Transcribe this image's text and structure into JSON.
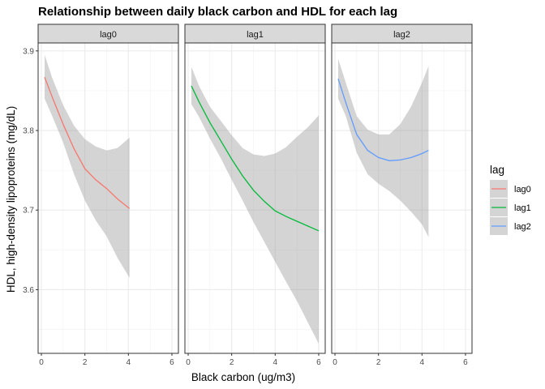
{
  "chart_data": {
    "type": "line",
    "title": "Relationship between daily black carbon and HDL for each lag",
    "xlabel": "Black carbon (ug/m3)",
    "ylabel": "HDL, high-density lipoproteins (mg/dL)",
    "xlim": [
      -0.15,
      6.3
    ],
    "ylim": [
      3.52,
      3.91
    ],
    "x_ticks": [
      0,
      2,
      4,
      6
    ],
    "y_ticks": [
      3.6,
      3.7,
      3.8,
      3.9
    ],
    "y_tick_labels": [
      "3.6",
      "3.7",
      "3.8",
      "3.9"
    ],
    "grid": true,
    "legend": {
      "title": "lag",
      "position": "right"
    },
    "panels": [
      {
        "name": "lag0",
        "color": "#F8766D",
        "x": [
          0.15,
          0.5,
          1.0,
          1.5,
          2.0,
          2.5,
          3.0,
          3.5,
          4.05
        ],
        "y": [
          3.867,
          3.842,
          3.808,
          3.777,
          3.752,
          3.738,
          3.727,
          3.714,
          3.702
        ],
        "lower": [
          3.84,
          3.818,
          3.785,
          3.745,
          3.712,
          3.687,
          3.667,
          3.64,
          3.615
        ],
        "upper": [
          3.895,
          3.866,
          3.832,
          3.806,
          3.789,
          3.78,
          3.775,
          3.778,
          3.791
        ]
      },
      {
        "name": "lag1",
        "color": "#00BA38",
        "x": [
          0.15,
          0.5,
          1.0,
          1.5,
          2.0,
          2.5,
          3.0,
          3.5,
          4.0,
          4.5,
          5.0,
          5.5,
          6.0
        ],
        "y": [
          3.856,
          3.836,
          3.81,
          3.787,
          3.764,
          3.743,
          3.725,
          3.711,
          3.699,
          3.692,
          3.686,
          3.68,
          3.674
        ],
        "lower": [
          3.833,
          3.817,
          3.79,
          3.765,
          3.738,
          3.712,
          3.685,
          3.66,
          3.635,
          3.61,
          3.586,
          3.559,
          3.532
        ],
        "upper": [
          3.88,
          3.856,
          3.83,
          3.812,
          3.794,
          3.778,
          3.77,
          3.768,
          3.771,
          3.779,
          3.792,
          3.804,
          3.819
        ]
      },
      {
        "name": "lag2",
        "color": "#619CFF",
        "x": [
          0.15,
          0.5,
          1.0,
          1.5,
          2.0,
          2.5,
          3.0,
          3.5,
          4.0,
          4.3
        ],
        "y": [
          3.865,
          3.835,
          3.795,
          3.775,
          3.766,
          3.762,
          3.763,
          3.766,
          3.771,
          3.775
        ],
        "lower": [
          3.84,
          3.818,
          3.772,
          3.745,
          3.733,
          3.724,
          3.712,
          3.698,
          3.682,
          3.666
        ],
        "upper": [
          3.89,
          3.86,
          3.818,
          3.801,
          3.795,
          3.795,
          3.808,
          3.83,
          3.86,
          3.881
        ]
      }
    ]
  }
}
